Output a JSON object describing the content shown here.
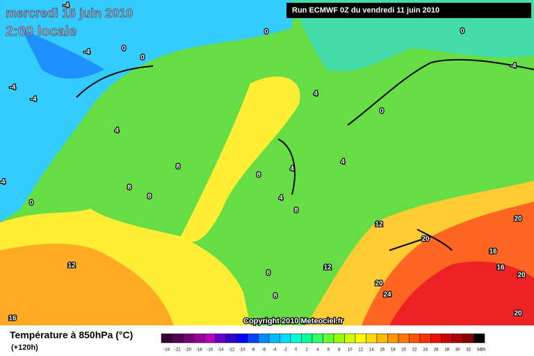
{
  "header": {
    "date": "mercredi 16 juin 2010",
    "time": "2:00 locale",
    "run": "Run ECMWF 0Z du vendredi 11 juin 2010"
  },
  "map": {
    "copyright": "Copyright 2010 Meteociel.fr",
    "contour_labels": [
      "-4",
      "0",
      "-4",
      "0",
      "0",
      "-4",
      "-4",
      "0",
      "-4",
      "0",
      "4",
      "4",
      "8",
      "8",
      "8",
      "8",
      "4",
      "4",
      "4",
      "8",
      "12",
      "20",
      "20",
      "16",
      "16",
      "20",
      "12",
      "12",
      "8",
      "8",
      "20",
      "24",
      "20",
      "16",
      "-4",
      "0"
    ]
  },
  "legend": {
    "title": "Température à 850hPa (°C)",
    "lead": "(+120h)",
    "scale": [
      "-24",
      "-22",
      "-20",
      "-18",
      "-16",
      "-14",
      "-12",
      "-10",
      "-8",
      "-6",
      "-4",
      "-2",
      "0",
      "2",
      "4",
      "6",
      "8",
      "10",
      "12",
      "14",
      "16",
      "18",
      "20",
      "22",
      "24",
      "26",
      "28",
      "30",
      "32",
      "34",
      "35"
    ]
  }
}
